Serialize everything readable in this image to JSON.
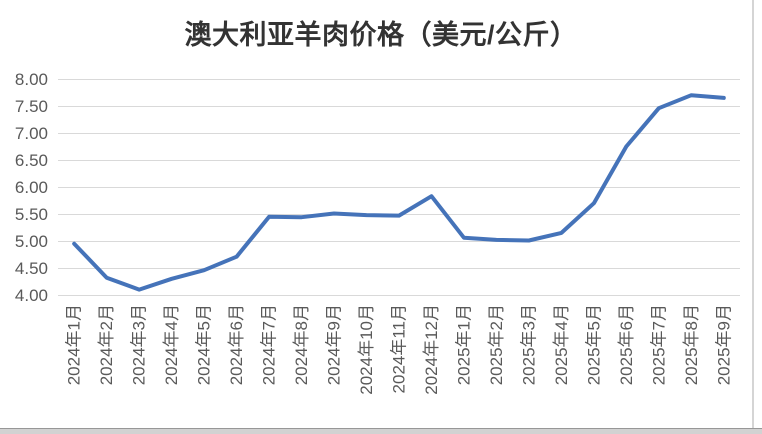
{
  "chart_data": {
    "type": "line",
    "title": "澳大利亚羊肉价格（美元/公斤）",
    "categories": [
      "2024年1月",
      "2024年2月",
      "2024年3月",
      "2024年4月",
      "2024年5月",
      "2024年6月",
      "2024年7月",
      "2024年8月",
      "2024年9月",
      "2024年10月",
      "2024年11月",
      "2024年12月",
      "2025年1月",
      "2025年2月",
      "2025年3月",
      "2025年4月",
      "2025年5月",
      "2025年6月",
      "2025年7月",
      "2025年8月",
      "2025年9月"
    ],
    "values": [
      4.95,
      4.32,
      4.1,
      4.3,
      4.46,
      4.71,
      5.45,
      5.44,
      5.51,
      5.48,
      5.47,
      5.83,
      5.06,
      5.02,
      5.01,
      5.15,
      5.7,
      6.75,
      7.46,
      7.7,
      7.65
    ],
    "xlabel": "",
    "ylabel": "",
    "ylim": [
      4.0,
      8.0
    ],
    "ytick_step": 0.5,
    "ytick_labels": [
      "4.00",
      "4.50",
      "5.00",
      "5.50",
      "6.00",
      "6.50",
      "7.00",
      "7.50",
      "8.00"
    ],
    "x_label_rotation": -90,
    "grid": true,
    "legend": "none",
    "colors": {
      "line": "#4573B9",
      "grid": "#D9D9D9",
      "tick_label": "#595959",
      "title": "#333333"
    }
  }
}
